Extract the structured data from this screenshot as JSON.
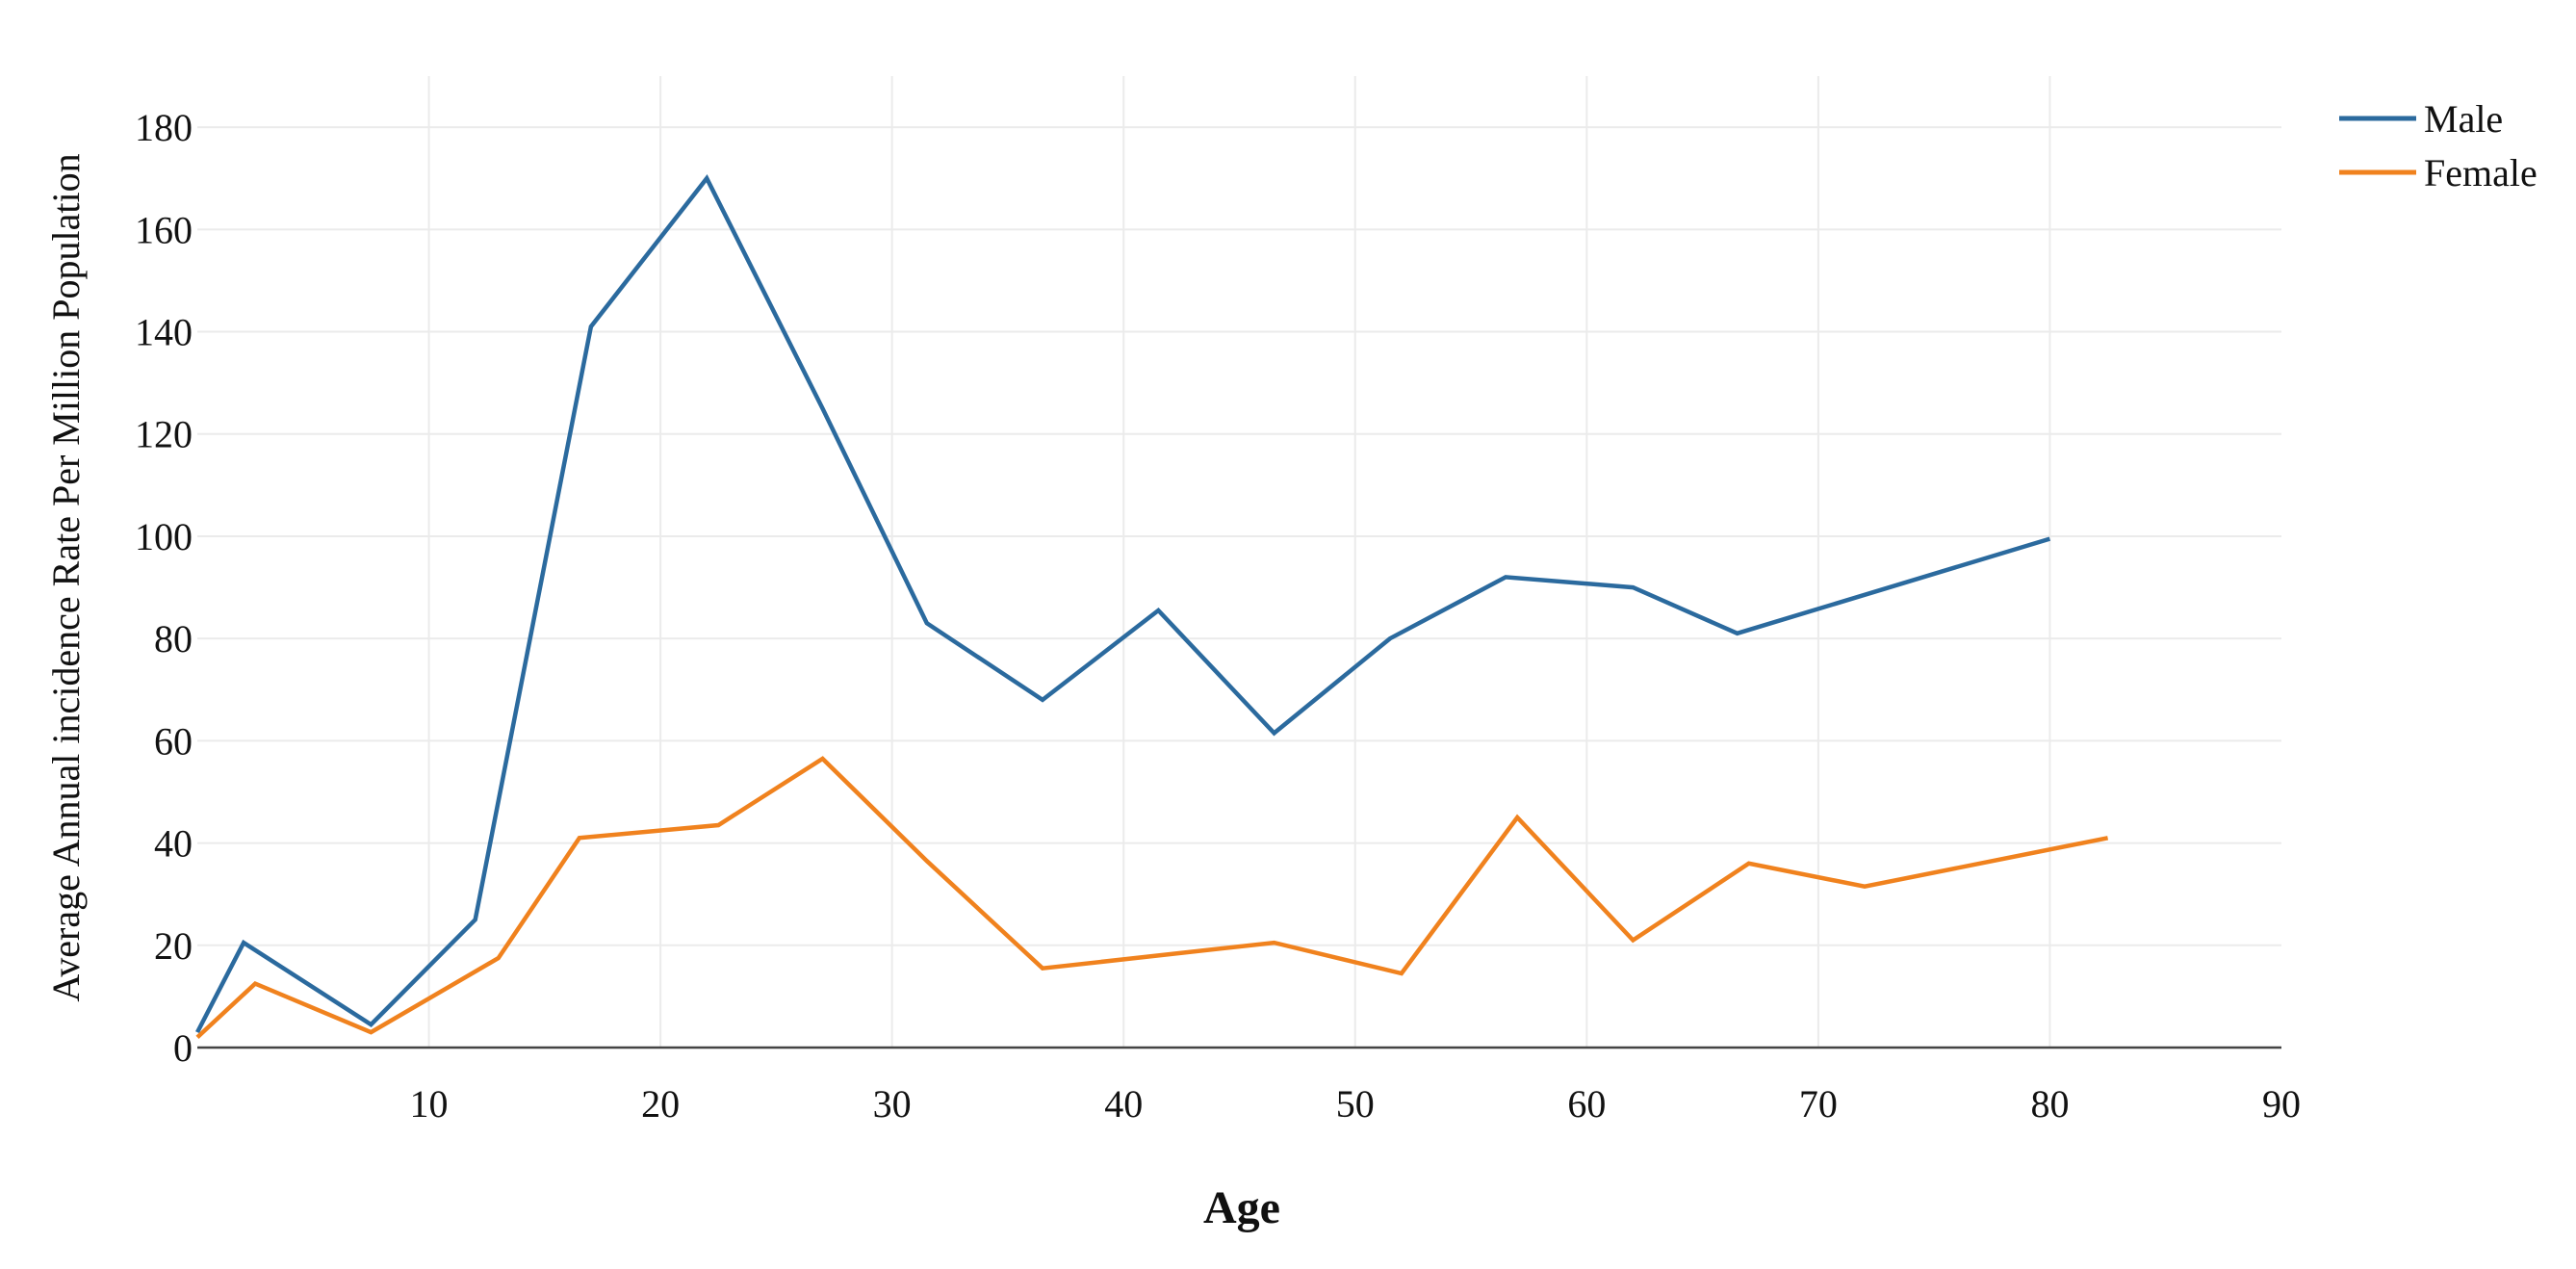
{
  "chart_data": {
    "type": "line",
    "xlabel": "Age",
    "ylabel": "Average Annual incidence Rate Per Million Population",
    "xlim": [
      0,
      90
    ],
    "ylim": [
      0,
      190
    ],
    "x_ticks": [
      10,
      20,
      30,
      40,
      50,
      60,
      70,
      80,
      90
    ],
    "y_ticks": [
      0,
      20,
      40,
      60,
      80,
      100,
      120,
      140,
      160,
      180
    ],
    "grid": true,
    "legend_position": "top-right",
    "series": [
      {
        "name": "Male",
        "color": "#2b6a9e",
        "x": [
          0,
          2,
          7.5,
          12,
          17,
          22,
          27,
          31.5,
          36.5,
          41.5,
          46.5,
          51.5,
          56.5,
          62,
          66.5,
          80
        ],
        "y": [
          3,
          20.5,
          4.5,
          25,
          141,
          170,
          125,
          83,
          68,
          85.5,
          61.5,
          80,
          92,
          90,
          81,
          99.5
        ]
      },
      {
        "name": "Female",
        "color": "#f0821e",
        "x": [
          0,
          2.5,
          7.5,
          13,
          16.5,
          22.5,
          27,
          31.5,
          36.5,
          41.5,
          46.5,
          52,
          57,
          62,
          67,
          72,
          82.5
        ],
        "y": [
          2,
          12.5,
          3,
          17.5,
          41,
          43.5,
          56.5,
          36.5,
          15.5,
          18,
          20.5,
          14.5,
          45,
          21,
          36,
          31.5,
          41
        ]
      }
    ]
  }
}
